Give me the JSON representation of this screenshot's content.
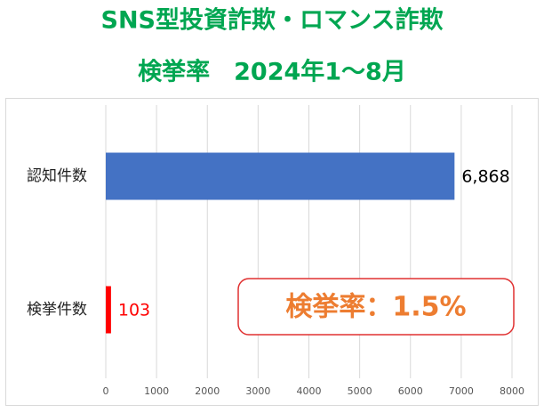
{
  "chart_data": {
    "type": "bar",
    "orientation": "horizontal",
    "title": [
      "SNS型投資詐欺・ロマンス詐欺",
      "検挙率　2024年1～8月"
    ],
    "categories": [
      "認知件数",
      "検挙件数"
    ],
    "values": [
      6868,
      103
    ],
    "value_labels": [
      "6,868",
      "103"
    ],
    "colors": [
      "#4472c4",
      "#ff0000"
    ],
    "xlim": [
      0,
      8000
    ],
    "xticks": [
      0,
      1000,
      2000,
      3000,
      4000,
      5000,
      6000,
      7000,
      8000
    ],
    "grid": true,
    "annotation": "検挙率：1.5%"
  }
}
